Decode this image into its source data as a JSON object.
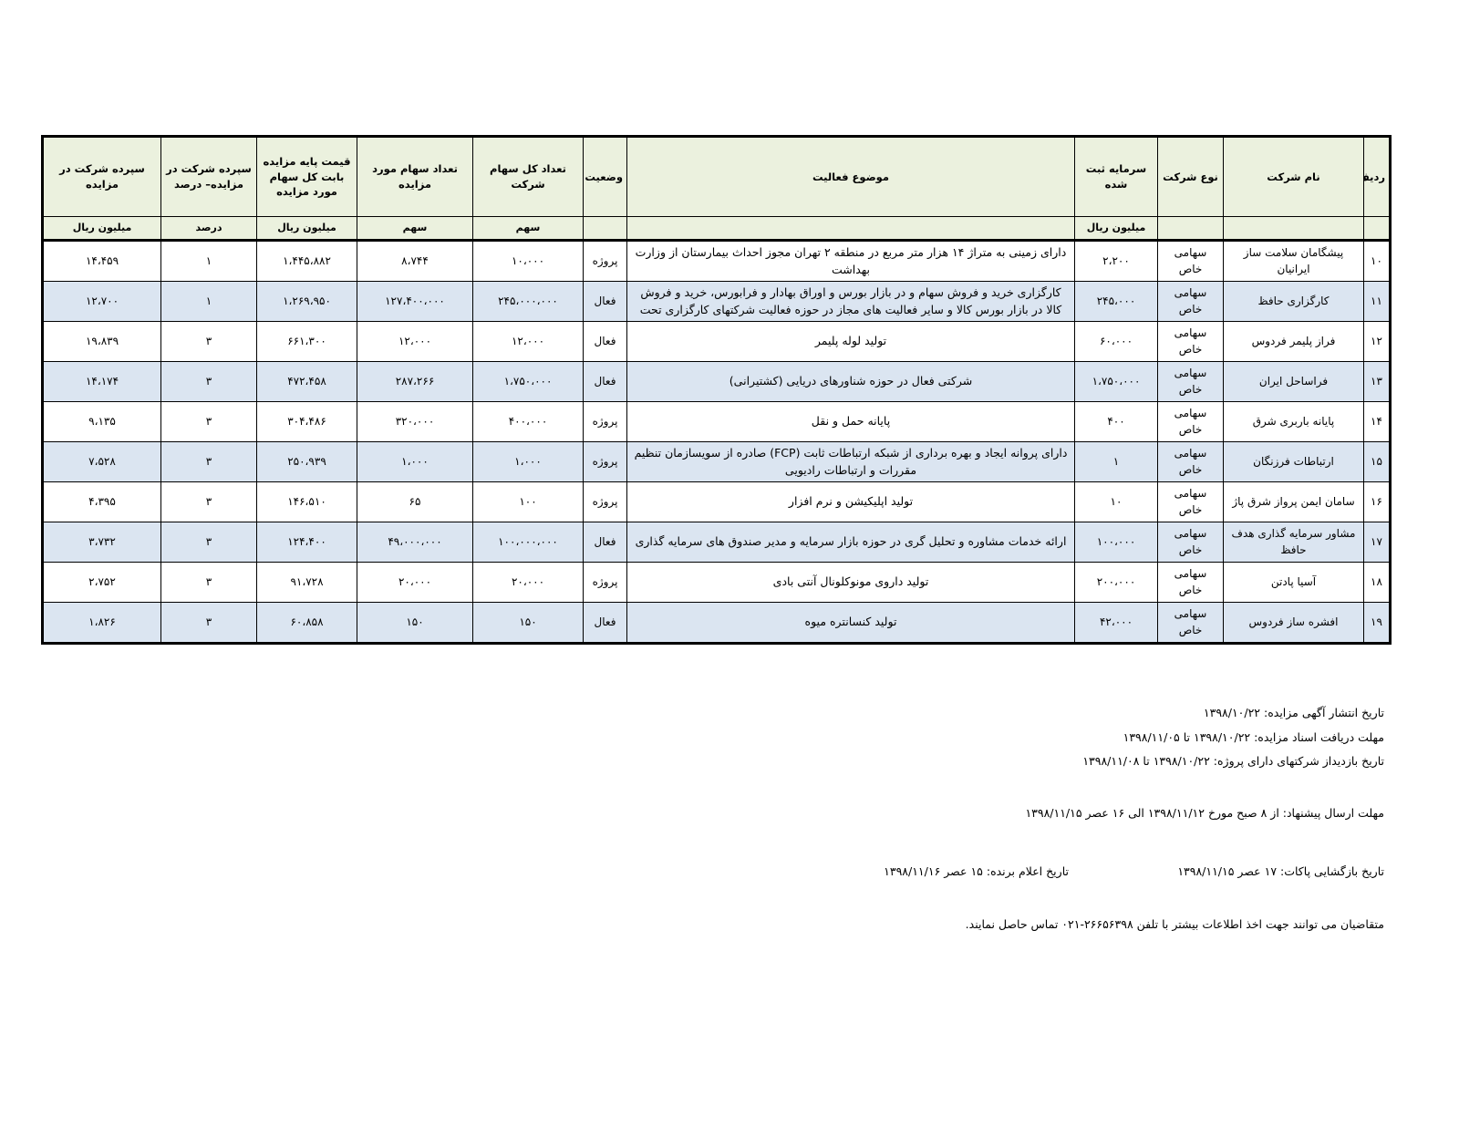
{
  "table": {
    "headers": [
      "ردیف",
      "نام شرکت",
      "نوع شرکت",
      "سرمایه ثبت شده",
      "موضوع فعالیت",
      "وضعیت",
      "تعداد کل سهام شرکت",
      "تعداد سهام مورد مزایده",
      "قیمت پایه مزایده بابت کل سهام مورد مزایده",
      "سپرده شرکت در مزایده– درصد",
      "سپرده شرکت در مزایده"
    ],
    "units": [
      null,
      null,
      null,
      "میلیون ریال",
      null,
      null,
      "سهم",
      "سهم",
      "میلیون ریال",
      "درصد",
      "میلیون ریال"
    ],
    "rows": [
      [
        "۱۰",
        "پیشگامان سلامت ساز ایرانیان",
        "سهامی خاص",
        "۲،۲۰۰",
        "دارای زمینی به متراژ ۱۴ هزار متر مربع در منطقه ۲ تهران مجوز احداث بیمارستان از وزارت بهداشت",
        "پروژه",
        "۱۰،۰۰۰",
        "۸،۷۴۴",
        "۱،۴۴۵،۸۸۲",
        "۱",
        "۱۴،۴۵۹"
      ],
      [
        "۱۱",
        "کارگزاری حافظ",
        "سهامی خاص",
        "۲۴۵،۰۰۰",
        "کارگزاری خرید و فروش سهام و در بازار بورس و اوراق بهادار و فرابورس، خرید و فروش کالا در بازار بورس کالا و سایر فعالیت های مجاز در حوزه فعالیت شرکتهای کارگزاری تحت",
        "فعال",
        "۲۴۵،۰۰۰،۰۰۰",
        "۱۲۷،۴۰۰،۰۰۰",
        "۱،۲۶۹،۹۵۰",
        "۱",
        "۱۲،۷۰۰"
      ],
      [
        "۱۲",
        "فراز پلیمر فردوس",
        "سهامی خاص",
        "۶۰،۰۰۰",
        "تولید لوله پلیمر",
        "فعال",
        "۱۲،۰۰۰",
        "۱۲،۰۰۰",
        "۶۶۱،۳۰۰",
        "۳",
        "۱۹،۸۳۹"
      ],
      [
        "۱۳",
        "فراساحل ایران",
        "سهامی خاص",
        "۱،۷۵۰،۰۰۰",
        "شرکتی فعال در حوزه شناورهای دریایی (کشتیرانی)",
        "فعال",
        "۱،۷۵۰،۰۰۰",
        "۲۸۷،۲۶۶",
        "۴۷۲،۴۵۸",
        "۳",
        "۱۴،۱۷۴"
      ],
      [
        "۱۴",
        "پایانه باربری شرق",
        "سهامی خاص",
        "۴۰۰",
        "پایانه حمل و نقل",
        "پروژه",
        "۴۰۰،۰۰۰",
        "۳۲۰،۰۰۰",
        "۳۰۴،۴۸۶",
        "۳",
        "۹،۱۳۵"
      ],
      [
        "۱۵",
        "ارتباطات فرزنگان",
        "سهامی خاص",
        "۱",
        "دارای پروانه ایجاد و بهره برداری از شبکه ارتباطات ثابت (FCP) صادره از سویسازمان تنظیم مقررات و ارتباطات رادیویی",
        "پروژه",
        "۱،۰۰۰",
        "۱،۰۰۰",
        "۲۵۰،۹۳۹",
        "۳",
        "۷،۵۲۸"
      ],
      [
        "۱۶",
        "سامان ایمن پرواز شرق پاژ",
        "سهامی خاص",
        "۱۰",
        "تولید اپلیکیشن و نرم افزار",
        "پروژه",
        "۱۰۰",
        "۶۵",
        "۱۴۶،۵۱۰",
        "۳",
        "۴،۳۹۵"
      ],
      [
        "۱۷",
        "مشاور سرمایه گذاری هدف حافظ",
        "سهامی خاص",
        "۱۰۰،۰۰۰",
        "ارائه خدمات مشاوره و تحلیل گری در حوزه بازار سرمایه و مدیر صندوق های سرمایه گذاری",
        "فعال",
        "۱۰۰،۰۰۰،۰۰۰",
        "۴۹،۰۰۰،۰۰۰",
        "۱۲۴،۴۰۰",
        "۳",
        "۳،۷۳۲"
      ],
      [
        "۱۸",
        "آسیا پادتن",
        "سهامی خاص",
        "۲۰۰،۰۰۰",
        "تولید داروی مونوکلونال آنتی بادی",
        "پروژه",
        "۲۰،۰۰۰",
        "۲۰،۰۰۰",
        "۹۱،۷۲۸",
        "۳",
        "۲،۷۵۲"
      ],
      [
        "۱۹",
        "افشره ساز فردوس",
        "سهامی خاص",
        "۴۲،۰۰۰",
        "تولید کنسانتره میوه",
        "فعال",
        "۱۵۰",
        "۱۵۰",
        "۶۰،۸۵۸",
        "۳",
        "۱،۸۲۶"
      ]
    ]
  },
  "notes": [
    "تاریخ انتشار آگهی مزایده: ۱۳۹۸/۱۰/۲۲",
    "مهلت دریافت اسناد مزایده: ۱۳۹۸/۱۰/۲۲ تا ۱۳۹۸/۱۱/۰۵",
    "تاریخ بازدیداز شرکتهای دارای پروژه: ۱۳۹۸/۱۰/۲۲ تا ۱۳۹۸/۱۱/۰۸",
    "مهلت ارسال پیشنهاد: از ۸ صبح مورخ ۱۳۹۸/۱۱/۱۲ الی ۱۶ عصر ۱۳۹۸/۱۱/۱۵",
    "تاریخ بازگشایی پاکات: ۱۷ عصر ۱۳۹۸/۱۱/۱۵",
    "تاریخ اعلام برنده: ۱۵ عصر ۱۳۹۸/۱۱/۱۶",
    "متقاضیان می توانند جهت اخذ اطلاعات بیشتر با تلفن ۲۶۶۵۶۳۹۸-۰۲۱ تماس حاصل نمایند."
  ]
}
